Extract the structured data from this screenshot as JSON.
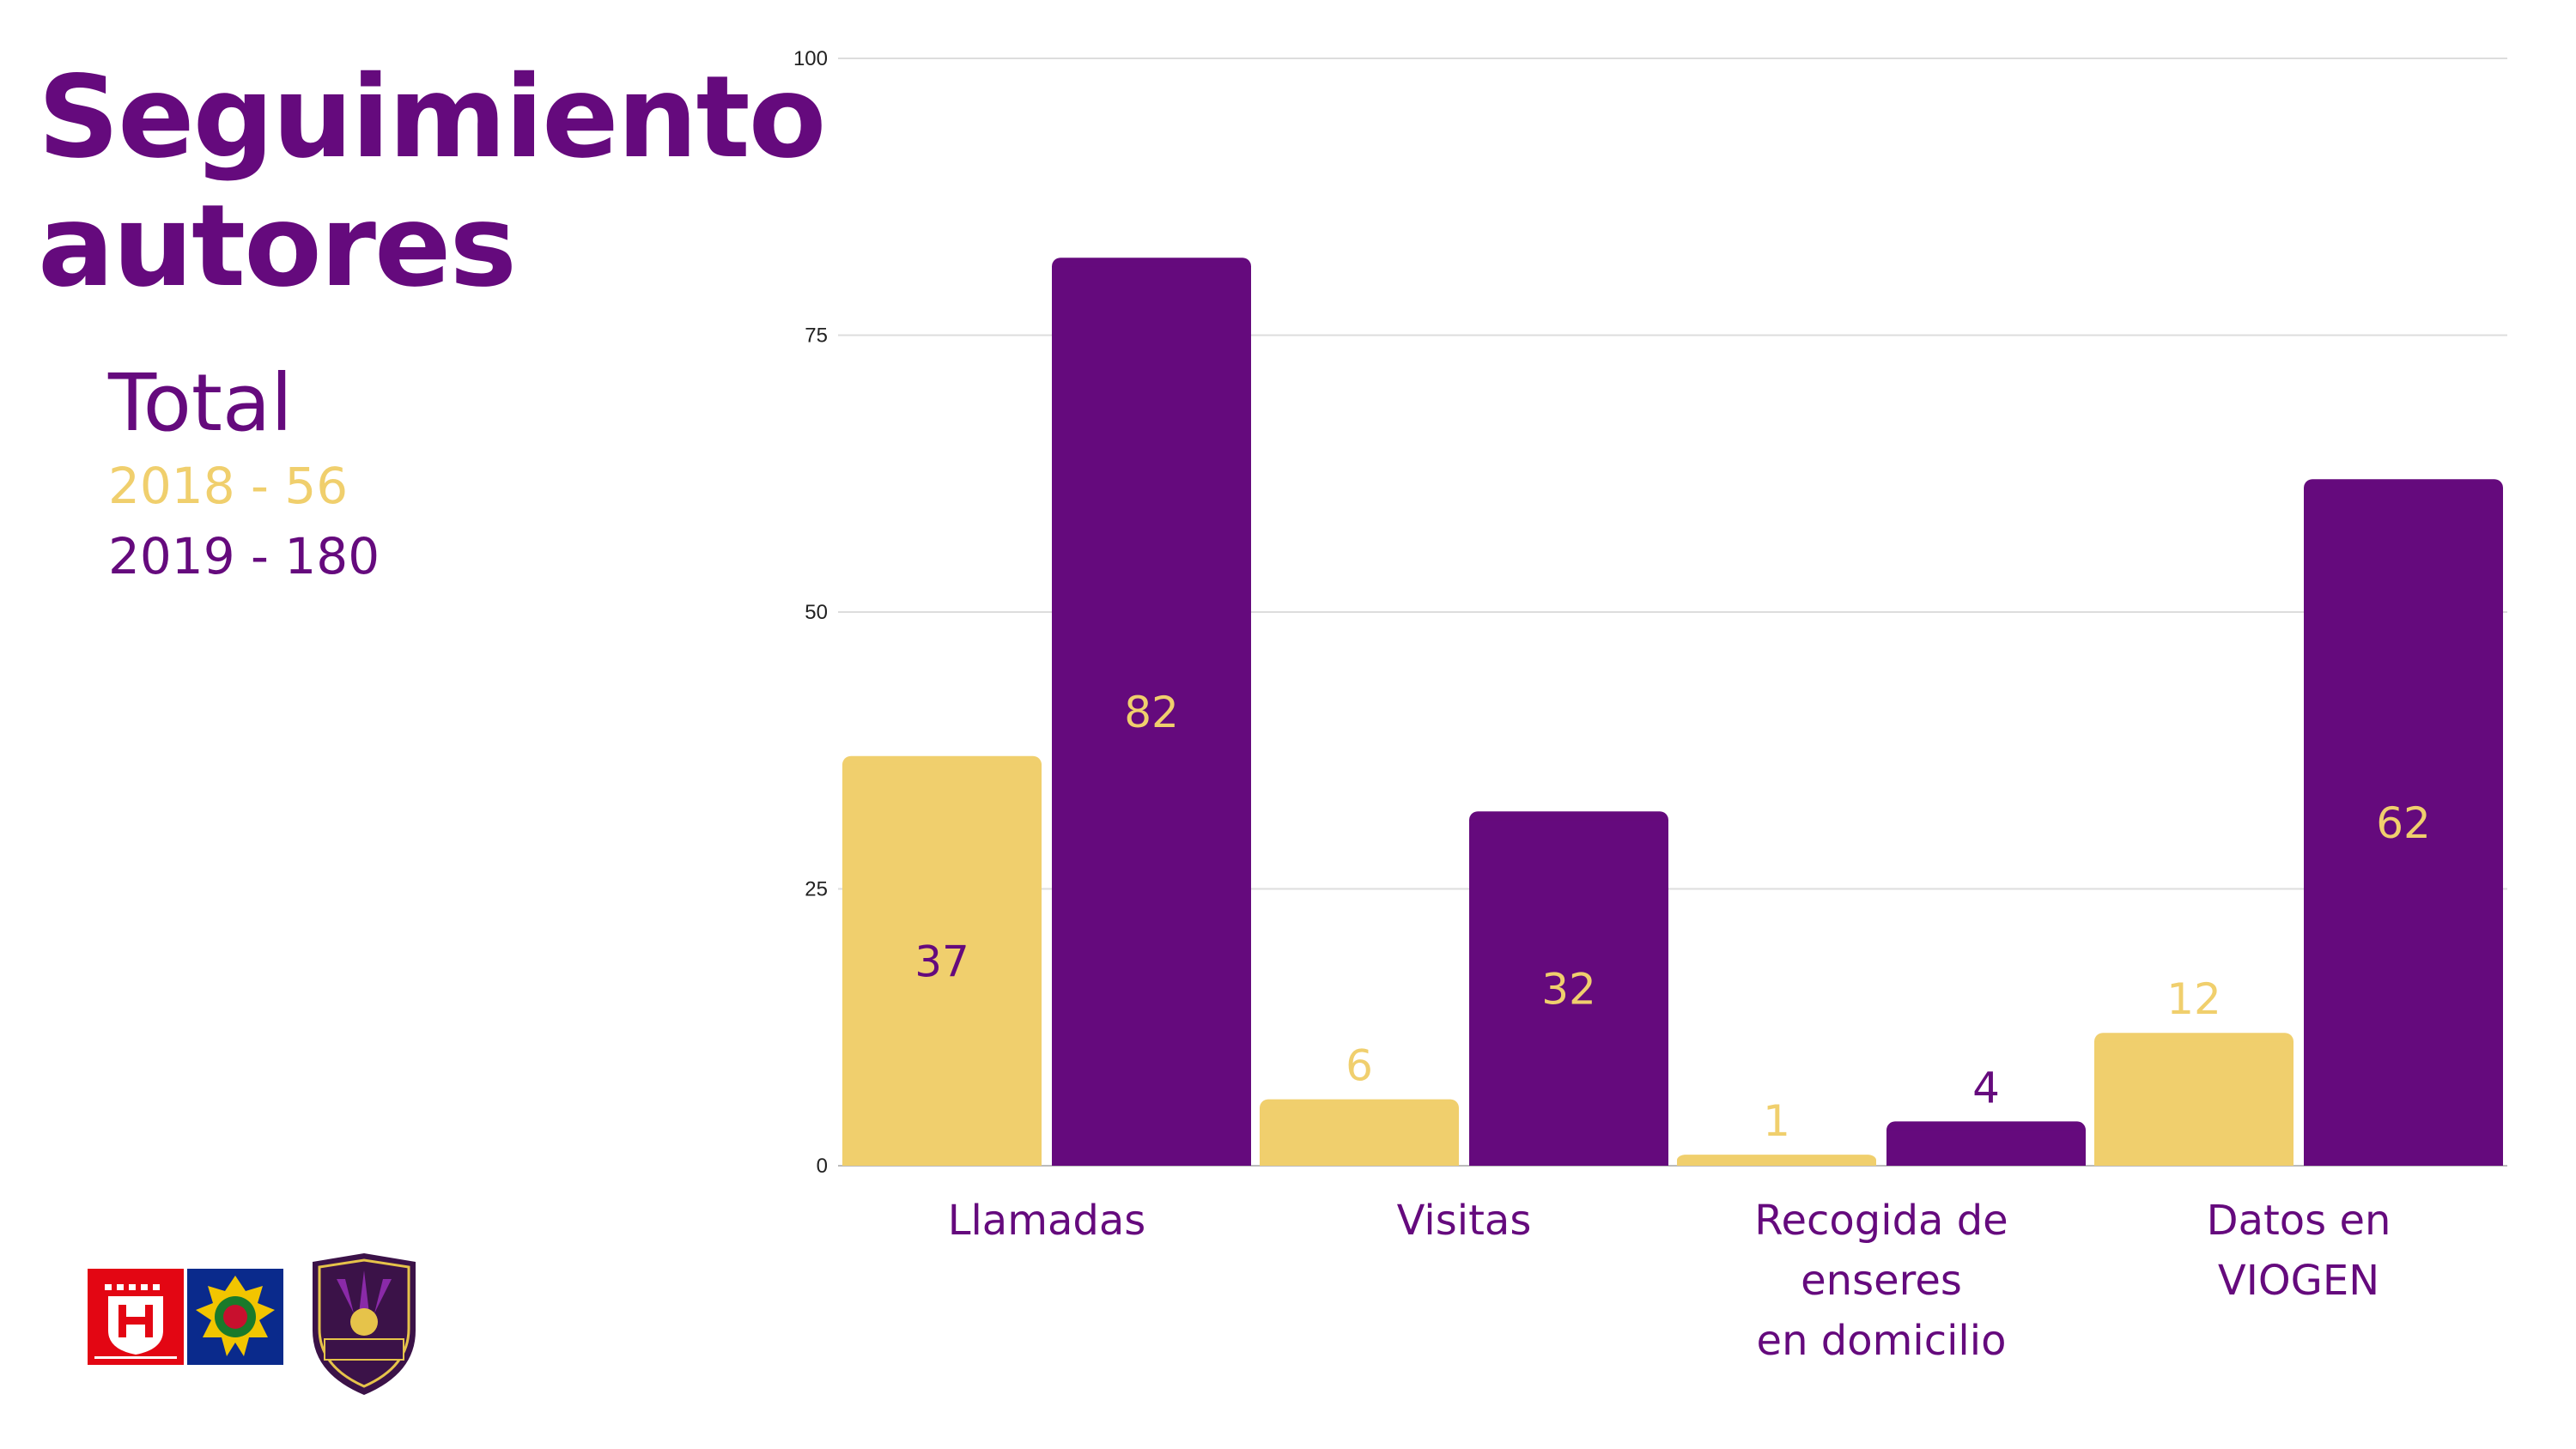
{
  "page": {
    "title_line1": "Seguimiento",
    "title_line2": "autores",
    "total_label": "Total",
    "total_2018": "2018 - 56",
    "total_2019": "2019 - 180"
  },
  "logos": [
    {
      "name": "ayuntamiento-elda-logo",
      "text": "Ayuntamiento de Elda"
    },
    {
      "name": "policia-local-badge",
      "text": ""
    },
    {
      "name": "unidad-violencia-genero-badge",
      "text": "UNIDAD VIOLENCIA DE GÉNERO ELDA"
    }
  ],
  "colors": {
    "c2018": "#f0cf6d",
    "c2019": "#650a7d",
    "grid": "#dddddd"
  },
  "chart_data": {
    "type": "bar",
    "categories": [
      [
        "Llamadas"
      ],
      [
        "Visitas"
      ],
      [
        "Recogida de",
        "enseres",
        "en domicilio"
      ],
      [
        "Datos en",
        "VIOGEN"
      ]
    ],
    "series": [
      {
        "values": [
          37,
          6,
          1,
          12
        ],
        "color": "#f0cf6d"
      },
      {
        "values": [
          82,
          32,
          4,
          62
        ],
        "color": "#650a7d"
      }
    ],
    "ylim": [
      0,
      100
    ],
    "yticks": [
      0,
      25,
      50,
      75,
      100
    ],
    "grid": true,
    "xlabel": "",
    "ylabel": ""
  }
}
